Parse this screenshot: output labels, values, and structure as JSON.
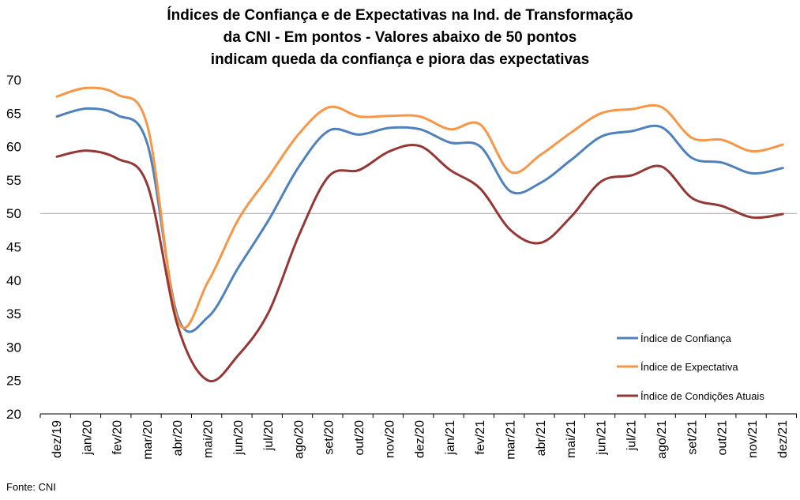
{
  "chart_data": {
    "type": "line",
    "title_lines": [
      "Índices de Confiança e de Expectativas na Ind. de Transformação",
      "da CNI - Em pontos - Valores abaixo de 50 pontos",
      "indicam queda da confiança e piora das expectativas"
    ],
    "categories": [
      "dez/19",
      "jan/20",
      "fev/20",
      "mar/20",
      "abr/20",
      "mai/20",
      "jun/20",
      "jul/20",
      "ago/20",
      "set/20",
      "out/20",
      "nov/20",
      "dez/20",
      "jan/21",
      "fev/21",
      "mar/21",
      "abr/21",
      "mai/21",
      "jun/21",
      "jul/21",
      "ago/21",
      "set/21",
      "out/21",
      "nov/21",
      "dez/21"
    ],
    "series": [
      {
        "name": "Índice de Confiança",
        "color": "#4F81BD",
        "values": [
          64.5,
          65.7,
          64.7,
          60.3,
          34.5,
          34.5,
          41.9,
          49.0,
          57.0,
          62.4,
          61.8,
          62.8,
          62.6,
          60.6,
          60.0,
          53.3,
          54.6,
          58.0,
          61.5,
          62.3,
          62.9,
          58.3,
          57.6,
          56.0,
          56.8
        ]
      },
      {
        "name": "Índice de Expectativa",
        "color": "#F79646",
        "values": [
          67.5,
          68.8,
          67.8,
          63.0,
          34.0,
          39.8,
          49.1,
          55.5,
          61.9,
          65.9,
          64.5,
          64.6,
          64.5,
          62.6,
          63.3,
          56.2,
          58.8,
          62.1,
          65.0,
          65.6,
          65.9,
          61.3,
          61.0,
          59.3,
          60.3
        ]
      },
      {
        "name": "Índice de Condições Atuais",
        "color": "#953735",
        "values": [
          58.5,
          59.4,
          58.2,
          54.2,
          33.1,
          25.0,
          28.8,
          35.2,
          46.7,
          55.6,
          56.5,
          59.3,
          60.1,
          56.5,
          53.7,
          47.5,
          45.6,
          49.5,
          54.8,
          55.7,
          57.0,
          52.3,
          51.1,
          49.4,
          49.9
        ]
      }
    ],
    "ylim": [
      20,
      70
    ],
    "yticks": [
      "20",
      "25",
      "30",
      "35",
      "40",
      "45",
      "50",
      "55",
      "60",
      "65",
      "70"
    ],
    "reference_line": 50,
    "grid": false,
    "legend_position": "right"
  },
  "source": "Fonte: CNI"
}
